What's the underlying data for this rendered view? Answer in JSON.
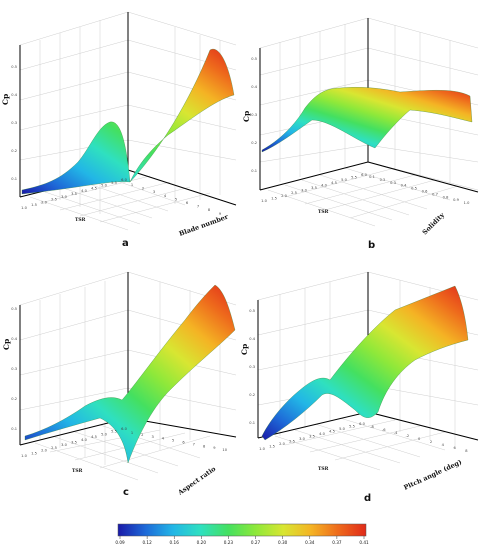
{
  "chart_data": [
    {
      "type": "surface3d",
      "panel": "a",
      "zlabel": "Cp",
      "xlabel": "TSR",
      "ylabel": "Blade number",
      "x_ticks": [
        "1.0",
        "1.5",
        "2.0",
        "2.5",
        "3.0",
        "3.5",
        "4.0",
        "4.5",
        "5.0",
        "5.5",
        "6.0"
      ],
      "y_ticks": [
        "1",
        "2",
        "3",
        "4",
        "5",
        "6",
        "7",
        "8",
        "9"
      ],
      "z_ticks": [
        "0.1",
        "0.2",
        "0.3",
        "0.4",
        "0.5"
      ],
      "surface": {
        "cp_min": 0.05,
        "cp_peak": 0.41,
        "peak_at": "high blade number, mid TSR"
      }
    },
    {
      "type": "surface3d",
      "panel": "b",
      "zlabel": "Cp",
      "xlabel": "TSR",
      "ylabel": "Solidity",
      "x_ticks": [
        "1.0",
        "1.5",
        "2.0",
        "2.5",
        "3.0",
        "3.5",
        "4.0",
        "4.5",
        "5.0",
        "5.5",
        "6.0"
      ],
      "y_ticks": [
        "0.1",
        "0.2",
        "0.3",
        "0.4",
        "0.5",
        "0.6",
        "0.7",
        "0.8",
        "0.9",
        "1.0"
      ],
      "z_ticks": [
        "0.1",
        "0.2",
        "0.3",
        "0.4",
        "0.5"
      ],
      "surface": {
        "cp_min": 0.05,
        "cp_peak": 0.41,
        "peak_at": "mid TSR, broad ridge"
      }
    },
    {
      "type": "surface3d",
      "panel": "c",
      "zlabel": "Cp",
      "xlabel": "TSR",
      "ylabel": "Aspect ratio",
      "x_ticks": [
        "1.0",
        "1.5",
        "2.0",
        "2.5",
        "3.0",
        "3.5",
        "4.0",
        "4.5",
        "5.0",
        "5.5",
        "6.0"
      ],
      "y_ticks": [
        "1",
        "2",
        "3",
        "4",
        "5",
        "6",
        "7",
        "8",
        "9",
        "10"
      ],
      "z_ticks": [
        "0.1",
        "0.2",
        "0.3",
        "0.4",
        "0.5"
      ],
      "surface": {
        "cp_min": 0.05,
        "cp_peak": 0.41,
        "peak_at": "high aspect ratio, mid TSR"
      }
    },
    {
      "type": "surface3d",
      "panel": "d",
      "zlabel": "Cp",
      "xlabel": "TSR",
      "ylabel": "Pitch angle (deg)",
      "x_ticks": [
        "1.0",
        "1.5",
        "2.0",
        "2.5",
        "3.0",
        "3.5",
        "4.0",
        "4.5",
        "5.0",
        "5.5",
        "6.0"
      ],
      "y_ticks": [
        "-8",
        "-6",
        "-4",
        "-2",
        "0",
        "2",
        "4",
        "6",
        "8"
      ],
      "z_ticks": [
        "0.1",
        "0.2",
        "0.3",
        "0.4",
        "0.5"
      ],
      "surface": {
        "cp_min": 0.05,
        "cp_peak": 0.41,
        "peak_at": "high pitch angle, mid TSR"
      }
    }
  ],
  "colorbar": {
    "ticks": [
      "0.09",
      "0.12",
      "0.16",
      "0.20",
      "0.23",
      "0.27",
      "0.30",
      "0.34",
      "0.37",
      "0.41"
    ],
    "colors": [
      "#1a1aa8",
      "#1e6ad8",
      "#22b6e6",
      "#2fe0c0",
      "#44e060",
      "#8ee83a",
      "#d8e632",
      "#f4b424",
      "#ee6a1c",
      "#e02a1a"
    ]
  }
}
